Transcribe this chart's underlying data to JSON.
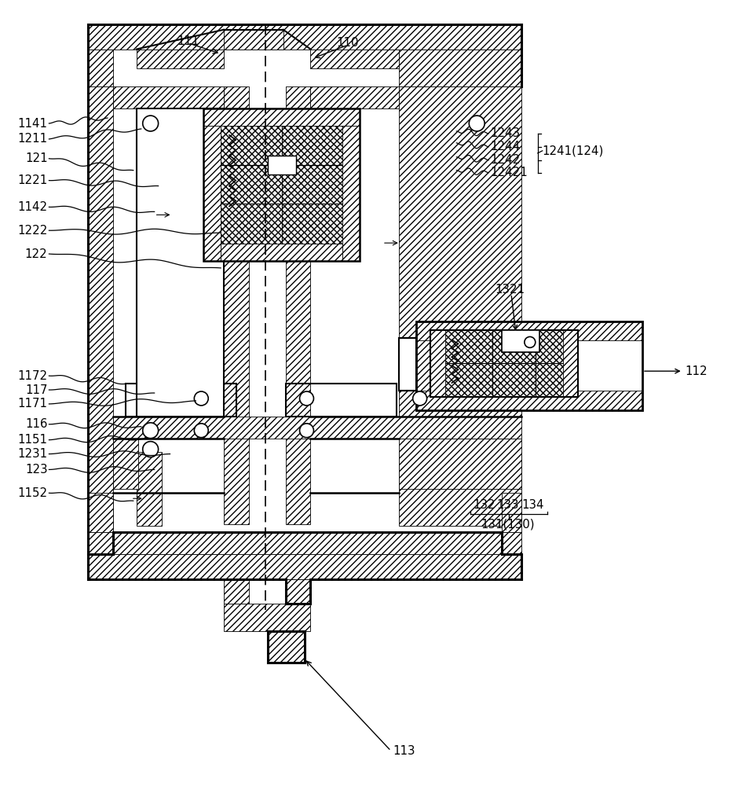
{
  "bg_color": "#ffffff",
  "line_color": "#000000",
  "figsize": [
    9.5,
    10.0
  ],
  "dpi": 100,
  "labels_left": [
    [
      "1141",
      58,
      155,
      135,
      148
    ],
    [
      "1211",
      58,
      175,
      178,
      162
    ],
    [
      "121",
      58,
      200,
      168,
      215
    ],
    [
      "1221",
      58,
      228,
      200,
      235
    ],
    [
      "1142",
      58,
      262,
      195,
      268
    ],
    [
      "1222",
      58,
      292,
      280,
      295
    ],
    [
      "122",
      58,
      322,
      280,
      340
    ],
    [
      "1172",
      58,
      478,
      168,
      488
    ],
    [
      "117",
      58,
      496,
      195,
      500
    ],
    [
      "1171",
      58,
      514,
      248,
      510
    ],
    [
      "116",
      58,
      540,
      178,
      543
    ],
    [
      "1151",
      58,
      560,
      188,
      558
    ],
    [
      "1231",
      58,
      578,
      215,
      578
    ],
    [
      "123",
      58,
      598,
      195,
      598
    ],
    [
      "1152",
      58,
      628,
      168,
      638
    ]
  ],
  "labels_right_upper": [
    [
      "1243",
      625,
      168,
      582,
      165
    ],
    [
      "1244",
      625,
      185,
      582,
      180
    ],
    [
      "1242",
      625,
      202,
      582,
      198
    ],
    [
      "12421",
      625,
      218,
      582,
      215
    ]
  ]
}
